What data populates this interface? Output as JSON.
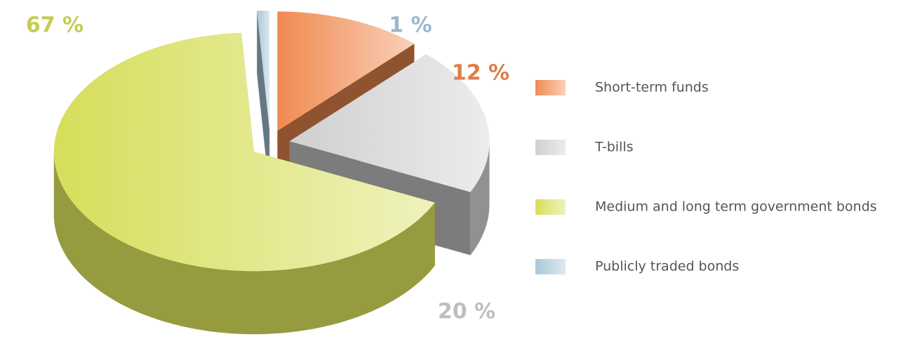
{
  "chart_data": {
    "type": "pie",
    "categories": [
      "Short-term funds",
      "T-bills",
      "Medium and long term government bonds",
      "Publicly traded bonds"
    ],
    "values": [
      12,
      20,
      67,
      1
    ],
    "value_labels": [
      "12 %",
      "20 %",
      "67 %",
      "1 %"
    ],
    "colors": [
      "#f08a50",
      "#cfcfcf",
      "#d6de5a",
      "#a9c8da"
    ],
    "legend": "right"
  }
}
